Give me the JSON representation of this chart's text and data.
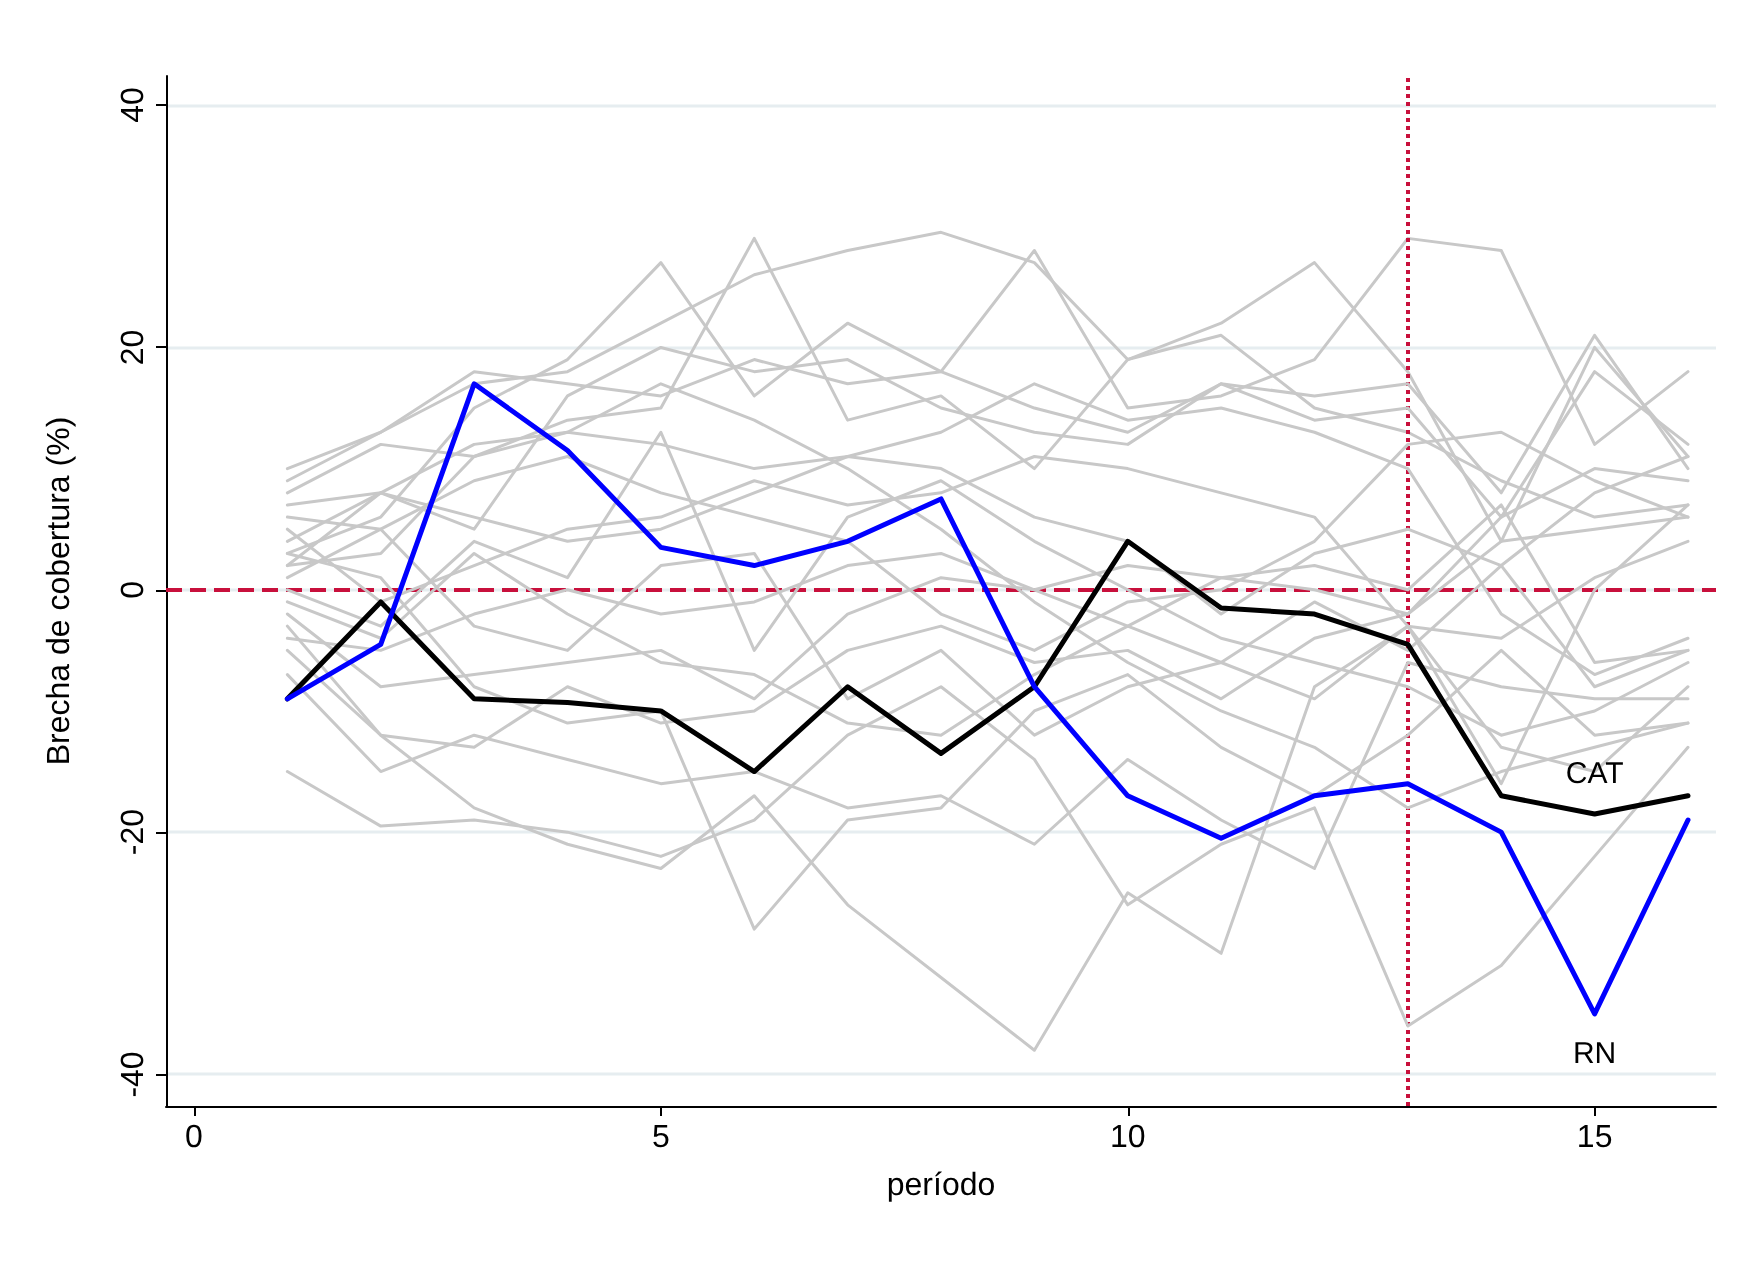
{
  "chart_data": {
    "type": "line",
    "xlabel": "período",
    "ylabel": "Brecha de cobertura (%)",
    "x": [
      1,
      2,
      3,
      4,
      5,
      6,
      7,
      8,
      9,
      10,
      11,
      12,
      13,
      14,
      15,
      16
    ],
    "xlim": [
      -0.3,
      16.3
    ],
    "xticks": [
      0,
      5,
      10,
      15
    ],
    "ylim": [
      -42.6,
      42.4
    ],
    "yticks": [
      -40,
      -20,
      0,
      20,
      40
    ],
    "grid": "y",
    "legend": false,
    "marker": "none",
    "line_style": "solid",
    "ref_lines": [
      {
        "axis": "y",
        "value": 0,
        "label": null,
        "color": "#c8103c",
        "line_style": "dashed"
      },
      {
        "axis": "x",
        "value": 13,
        "label": null,
        "color": "#c8103c",
        "line_style": "dotted"
      }
    ],
    "series": [
      {
        "color": "#c8c8c8",
        "values": [
          10,
          13,
          17,
          18,
          22,
          26,
          28,
          29.5,
          27,
          19,
          21,
          15,
          13,
          9,
          6,
          7
        ]
      },
      {
        "color": "#c8c8c8",
        "values": [
          9,
          13,
          18,
          17,
          16,
          19,
          17,
          18,
          28,
          15,
          16,
          19,
          29,
          28,
          12,
          18
        ]
      },
      {
        "color": "#c8c8c8",
        "values": [
          8,
          12,
          11,
          14,
          15,
          29,
          14,
          16,
          10,
          19,
          22,
          27,
          18,
          4,
          20,
          11
        ]
      },
      {
        "color": "#c8c8c8",
        "values": [
          4,
          8,
          5,
          16,
          20,
          18,
          19,
          15,
          13,
          12,
          17,
          16,
          17,
          8,
          21,
          10
        ]
      },
      {
        "color": "#c8c8c8",
        "values": [
          3,
          6,
          15,
          19,
          27,
          16,
          22,
          18,
          15,
          13,
          17,
          14,
          15,
          6,
          18,
          12
        ]
      },
      {
        "color": "#c8c8c8",
        "values": [
          2,
          8,
          12,
          13,
          12,
          10,
          11,
          10,
          6,
          4,
          -2,
          3,
          5,
          2,
          8,
          11
        ]
      },
      {
        "color": "#c8c8c8",
        "values": [
          0,
          -3,
          4,
          1,
          13,
          -5,
          6,
          9,
          4,
          0,
          -4,
          -6,
          -8,
          -12,
          -10,
          -6
        ]
      },
      {
        "color": "#c8c8c8",
        "values": [
          -2,
          -8,
          -7,
          -6,
          -5,
          -9,
          -2,
          1,
          0,
          2,
          1,
          0,
          -2,
          4,
          5,
          6
        ]
      },
      {
        "color": "#c8c8c8",
        "values": [
          -4,
          -5,
          -2,
          0,
          -2,
          -1,
          2,
          3,
          0,
          -3,
          -6,
          -1,
          -5,
          2,
          -8,
          -5
        ]
      },
      {
        "color": "#c8c8c8",
        "values": [
          -5,
          -12,
          -13,
          -8,
          -11,
          -10,
          -5,
          -3,
          -6,
          -5,
          -9,
          -4,
          -2,
          6,
          10,
          9
        ]
      },
      {
        "color": "#c8c8c8",
        "values": [
          -1,
          -4,
          3,
          -2,
          -6,
          -7,
          -11,
          -12,
          -7,
          -3,
          1,
          2,
          0,
          7,
          -6,
          -5
        ]
      },
      {
        "color": "#c8c8c8",
        "values": [
          1,
          5,
          -3,
          -5,
          2,
          3,
          -9,
          -5,
          -12,
          -8,
          -6,
          -9,
          -3,
          -13,
          -15,
          -8
        ]
      },
      {
        "color": "#c8c8c8",
        "values": [
          -7,
          -15,
          -12,
          -14,
          -16,
          -15,
          -18,
          -17,
          -21,
          -14,
          -19,
          -23,
          -6,
          -8,
          -9,
          -9
        ]
      },
      {
        "color": "#c8c8c8",
        "values": [
          -15,
          -19.5,
          -19,
          -20,
          -22,
          -19,
          -12,
          -8,
          -14,
          -26,
          -21,
          -18,
          -36,
          -31,
          -22,
          -13
        ]
      },
      {
        "color": "#c8c8c8",
        "values": [
          -3,
          -12,
          -18,
          -21,
          -23,
          -17,
          -26,
          -32,
          -38,
          -25,
          -30,
          -8,
          -3,
          -16,
          0,
          7
        ]
      },
      {
        "color": "#c8c8c8",
        "values": [
          3,
          1,
          -8,
          -11,
          -10,
          -28,
          -19,
          -18,
          -10,
          -7,
          -13,
          -17,
          -12,
          -5,
          -12,
          -11
        ]
      },
      {
        "color": "#c8c8c8",
        "values": [
          7,
          8,
          6,
          4,
          5,
          8,
          11,
          13,
          17,
          14,
          15,
          13,
          10,
          -2,
          -7,
          -4
        ]
      },
      {
        "color": "#c8c8c8",
        "values": [
          6,
          5,
          9,
          11,
          8,
          6,
          4,
          -2,
          -5,
          -1,
          0,
          4,
          12,
          13,
          9,
          6
        ]
      },
      {
        "color": "#c8c8c8",
        "values": [
          5,
          -1,
          2,
          5,
          6,
          9,
          7,
          8,
          11,
          10,
          8,
          6,
          -3,
          -4,
          1,
          4
        ]
      },
      {
        "color": "#c8c8c8",
        "values": [
          2,
          3,
          11,
          13,
          17,
          14,
          10,
          5,
          -1,
          -6,
          -10,
          -13,
          -18,
          -15,
          -13,
          -11
        ]
      },
      {
        "name": "CAT",
        "color": "#000000",
        "values": [
          -9,
          -1,
          -9,
          -9.3,
          -10,
          -15,
          -8,
          -13.5,
          -8,
          4,
          -1.5,
          -2,
          -4.5,
          -17,
          -18.5,
          -17
        ]
      },
      {
        "name": "RN",
        "color": "#0000ff",
        "values": [
          -9,
          -4.5,
          17,
          11.5,
          3.5,
          2,
          4,
          7.5,
          -8,
          -17,
          -20.5,
          -17,
          -16,
          -20,
          -35,
          -19
        ]
      }
    ]
  }
}
